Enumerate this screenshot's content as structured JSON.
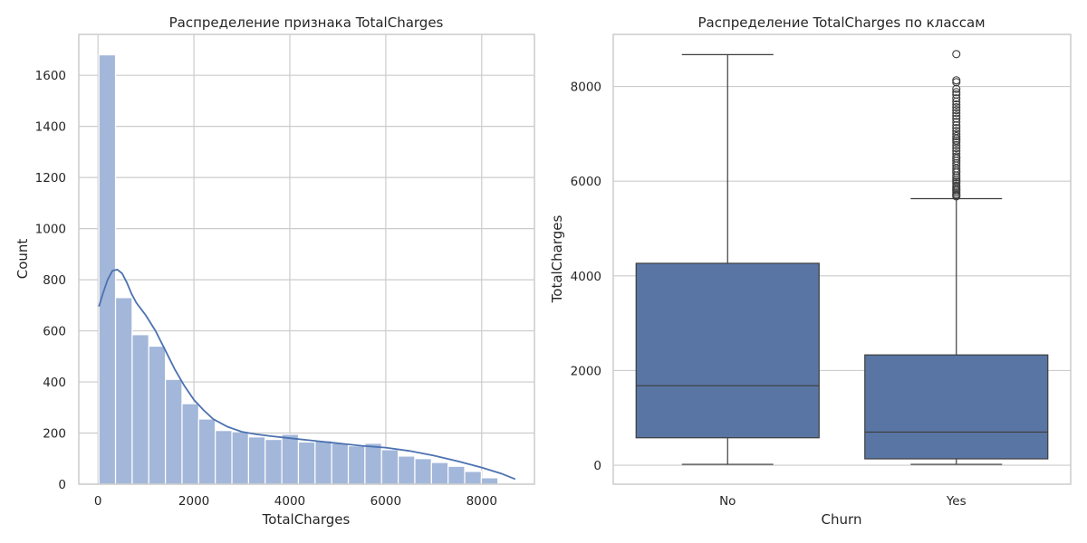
{
  "chart_data": [
    {
      "type": "histogram",
      "title": "Распределение признака TotalCharges",
      "xlabel": "TotalCharges",
      "ylabel": "Count",
      "xlim": [
        -400,
        9100
      ],
      "ylim": [
        0,
        1760
      ],
      "xticks": [
        0,
        2000,
        4000,
        6000,
        8000
      ],
      "yticks": [
        0,
        200,
        400,
        600,
        800,
        1000,
        1200,
        1400,
        1600
      ],
      "grid": true,
      "bar_color": "#a3b7da",
      "kde_color": "#4c72b0",
      "bin_start": 19,
      "bin_width": 346.7,
      "counts": [
        1680,
        730,
        585,
        540,
        410,
        315,
        255,
        210,
        205,
        185,
        175,
        195,
        165,
        170,
        160,
        150,
        160,
        135,
        110,
        100,
        85,
        70,
        50,
        25
      ],
      "kde": {
        "x": [
          19,
          100,
          200,
          300,
          400,
          500,
          600,
          700,
          800,
          900,
          1000,
          1200,
          1400,
          1600,
          1800,
          2000,
          2200,
          2400,
          2700,
          3000,
          3300,
          3600,
          4000,
          4500,
          5000,
          5500,
          6000,
          6500,
          7000,
          7500,
          8000,
          8400,
          8700
        ],
        "y": [
          695,
          745,
          800,
          835,
          840,
          825,
          790,
          745,
          710,
          685,
          660,
          600,
          525,
          450,
          385,
          330,
          290,
          255,
          225,
          205,
          195,
          188,
          180,
          170,
          160,
          150,
          143,
          130,
          112,
          90,
          65,
          42,
          20
        ]
      }
    },
    {
      "type": "box",
      "title": "Распределение TotalCharges по классам",
      "xlabel": "Churn",
      "ylabel": "TotalCharges",
      "categories": [
        "No",
        "Yes"
      ],
      "ylim": [
        -400,
        9100
      ],
      "yticks": [
        0,
        2000,
        4000,
        6000,
        8000
      ],
      "grid": true,
      "box_color": "#5975a4",
      "line_color": "#3d3d3d",
      "boxes": [
        {
          "name": "No",
          "min": 19,
          "q1": 580,
          "median": 1680,
          "q3": 4265,
          "max": 8672,
          "outliers": []
        },
        {
          "name": "Yes",
          "min": 19,
          "q1": 135,
          "median": 700,
          "q3": 2330,
          "max": 5630,
          "outliers": [
            5680,
            5700,
            5720,
            5760,
            5800,
            5830,
            5870,
            5900,
            5950,
            5990,
            6030,
            6080,
            6120,
            6180,
            6220,
            6270,
            6330,
            6380,
            6430,
            6480,
            6520,
            6580,
            6640,
            6700,
            6760,
            6820,
            6860,
            6900,
            6950,
            7000,
            7060,
            7120,
            7180,
            7250,
            7320,
            7380,
            7440,
            7500,
            7560,
            7620,
            7680,
            7750,
            7830,
            7880,
            7950,
            8090,
            8130,
            8684
          ]
        }
      ]
    }
  ]
}
